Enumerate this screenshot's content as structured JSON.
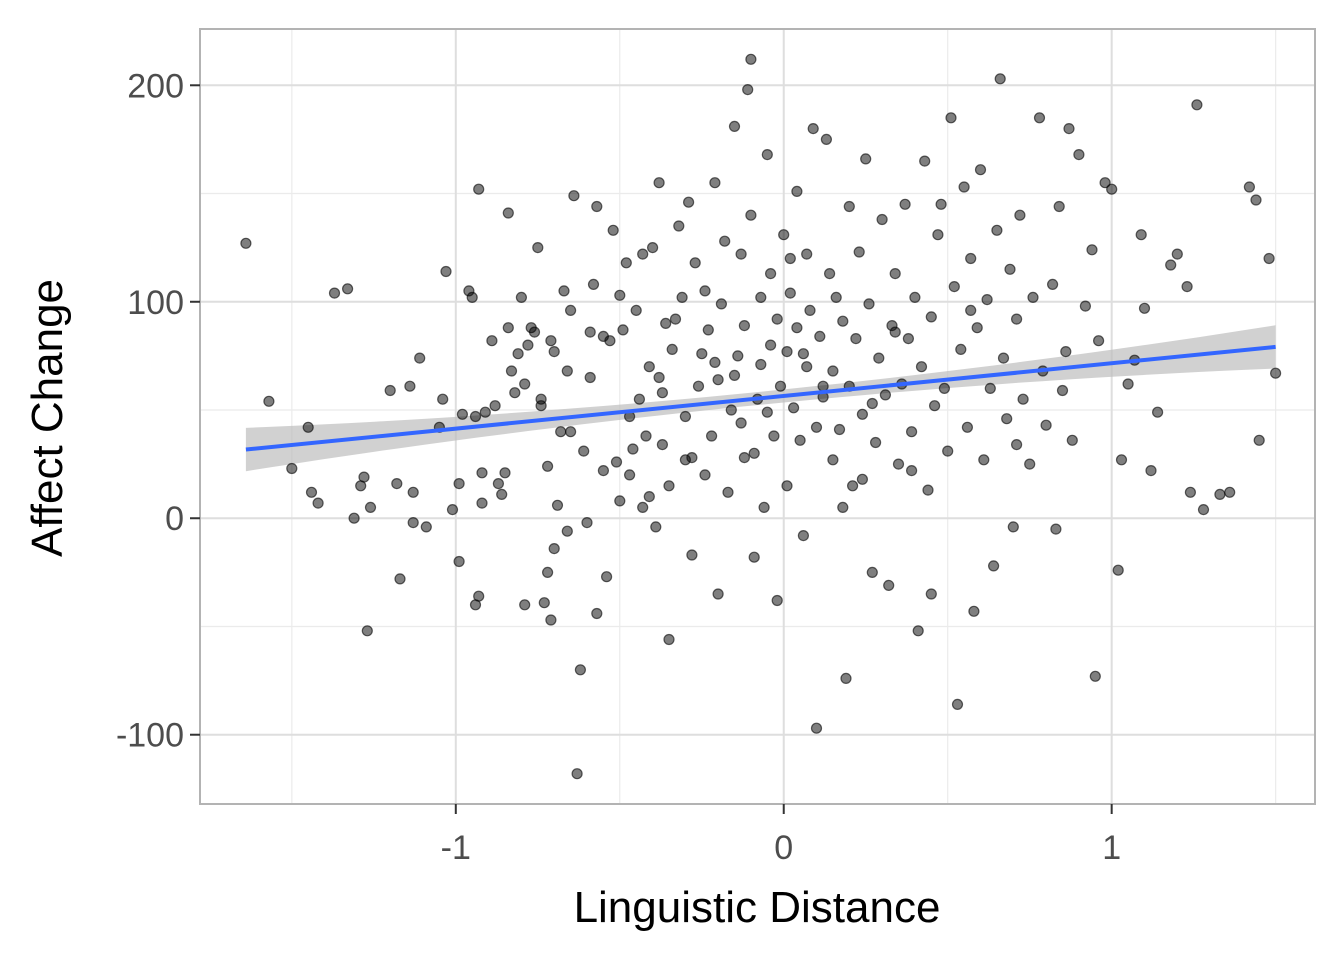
{
  "chart_data": {
    "type": "scatter",
    "title": "",
    "xlabel": "Linguistic Distance",
    "ylabel": "Affect Change",
    "xlim": [
      -1.78,
      1.62
    ],
    "ylim": [
      -132,
      226
    ],
    "x_ticks": [
      -1,
      0,
      1
    ],
    "x_tick_labels": [
      "-1",
      "0",
      "1"
    ],
    "y_ticks": [
      -100,
      0,
      100,
      200
    ],
    "y_tick_labels": [
      "-100",
      "0",
      "100",
      "200"
    ],
    "grid": true,
    "legend": "none",
    "point_color": "#000000",
    "point_opacity": 0.5,
    "regression": {
      "method": "linear",
      "line_color": "#3366ff",
      "band_color": "#bebebe",
      "x_range": [
        -1.64,
        1.5
      ],
      "slope": 15.1,
      "intercept": 56.5,
      "se_at_ends": 10,
      "se_at_center": 3
    },
    "points": [
      [
        -1.64,
        127
      ],
      [
        -1.57,
        54
      ],
      [
        -1.5,
        23
      ],
      [
        -1.45,
        42
      ],
      [
        -1.44,
        12
      ],
      [
        -1.42,
        7
      ],
      [
        -1.37,
        104
      ],
      [
        -1.33,
        106
      ],
      [
        -1.31,
        0
      ],
      [
        -1.29,
        15
      ],
      [
        -1.28,
        19
      ],
      [
        -1.27,
        -52
      ],
      [
        -1.26,
        5
      ],
      [
        -1.2,
        59
      ],
      [
        -1.18,
        16
      ],
      [
        -1.17,
        -28
      ],
      [
        -1.14,
        61
      ],
      [
        -1.13,
        12
      ],
      [
        -1.13,
        -2
      ],
      [
        -1.11,
        74
      ],
      [
        -1.09,
        -4
      ],
      [
        -1.05,
        42
      ],
      [
        -1.04,
        55
      ],
      [
        -1.03,
        114
      ],
      [
        -1.01,
        4
      ],
      [
        -0.99,
        16
      ],
      [
        -0.99,
        -20
      ],
      [
        -0.98,
        48
      ],
      [
        -0.96,
        105
      ],
      [
        -0.95,
        102
      ],
      [
        -0.94,
        -40
      ],
      [
        -0.94,
        47
      ],
      [
        -0.93,
        -36
      ],
      [
        -0.93,
        152
      ],
      [
        -0.92,
        7
      ],
      [
        -0.92,
        21
      ],
      [
        -0.91,
        49
      ],
      [
        -0.89,
        82
      ],
      [
        -0.88,
        52
      ],
      [
        -0.87,
        16
      ],
      [
        -0.86,
        11
      ],
      [
        -0.85,
        21
      ],
      [
        -0.84,
        141
      ],
      [
        -0.84,
        88
      ],
      [
        -0.83,
        68
      ],
      [
        -0.82,
        58
      ],
      [
        -0.81,
        76
      ],
      [
        -0.8,
        102
      ],
      [
        -0.79,
        62
      ],
      [
        -0.78,
        80
      ],
      [
        -0.77,
        88
      ],
      [
        -0.76,
        86
      ],
      [
        -0.75,
        125
      ],
      [
        -0.74,
        52
      ],
      [
        -0.74,
        55
      ],
      [
        -0.73,
        -39
      ],
      [
        -0.72,
        24
      ],
      [
        -0.72,
        -25
      ],
      [
        -0.71,
        -47
      ],
      [
        -0.71,
        82
      ],
      [
        -0.7,
        77
      ],
      [
        -0.69,
        6
      ],
      [
        -0.68,
        40
      ],
      [
        -0.67,
        105
      ],
      [
        -0.66,
        68
      ],
      [
        -0.66,
        -6
      ],
      [
        -0.65,
        40
      ],
      [
        -0.65,
        96
      ],
      [
        -0.64,
        149
      ],
      [
        -0.63,
        -118
      ],
      [
        -0.62,
        -70
      ],
      [
        -0.61,
        31
      ],
      [
        -0.6,
        -2
      ],
      [
        -0.59,
        65
      ],
      [
        -0.59,
        86
      ],
      [
        -0.58,
        108
      ],
      [
        -0.57,
        144
      ],
      [
        -0.57,
        -44
      ],
      [
        -0.55,
        22
      ],
      [
        -0.54,
        -27
      ],
      [
        -0.53,
        82
      ],
      [
        -0.52,
        133
      ],
      [
        -0.51,
        26
      ],
      [
        -0.5,
        103
      ],
      [
        -0.5,
        8
      ],
      [
        -0.49,
        87
      ],
      [
        -0.48,
        118
      ],
      [
        -0.47,
        47
      ],
      [
        -0.46,
        32
      ],
      [
        -0.45,
        96
      ],
      [
        -0.44,
        55
      ],
      [
        -0.43,
        122
      ],
      [
        -0.43,
        5
      ],
      [
        -0.42,
        38
      ],
      [
        -0.41,
        70
      ],
      [
        -0.4,
        125
      ],
      [
        -0.39,
        -4
      ],
      [
        -0.38,
        155
      ],
      [
        -0.38,
        65
      ],
      [
        -0.37,
        34
      ],
      [
        -0.36,
        90
      ],
      [
        -0.35,
        15
      ],
      [
        -0.35,
        -56
      ],
      [
        -0.34,
        78
      ],
      [
        -0.33,
        92
      ],
      [
        -0.32,
        135
      ],
      [
        -0.31,
        102
      ],
      [
        -0.3,
        47
      ],
      [
        -0.3,
        27
      ],
      [
        -0.29,
        146
      ],
      [
        -0.28,
        -17
      ],
      [
        -0.27,
        118
      ],
      [
        -0.26,
        61
      ],
      [
        -0.25,
        76
      ],
      [
        -0.24,
        20
      ],
      [
        -0.24,
        105
      ],
      [
        -0.23,
        87
      ],
      [
        -0.22,
        38
      ],
      [
        -0.21,
        155
      ],
      [
        -0.2,
        -35
      ],
      [
        -0.2,
        64
      ],
      [
        -0.19,
        99
      ],
      [
        -0.18,
        128
      ],
      [
        -0.17,
        12
      ],
      [
        -0.16,
        50
      ],
      [
        -0.15,
        181
      ],
      [
        -0.15,
        66
      ],
      [
        -0.14,
        75
      ],
      [
        -0.13,
        122
      ],
      [
        -0.12,
        89
      ],
      [
        -0.12,
        28
      ],
      [
        -0.11,
        198
      ],
      [
        -0.1,
        212
      ],
      [
        -0.1,
        140
      ],
      [
        -0.09,
        -18
      ],
      [
        -0.08,
        55
      ],
      [
        -0.07,
        102
      ],
      [
        -0.07,
        71
      ],
      [
        -0.06,
        5
      ],
      [
        -0.05,
        168
      ],
      [
        -0.04,
        113
      ],
      [
        -0.04,
        80
      ],
      [
        -0.03,
        38
      ],
      [
        -0.02,
        92
      ],
      [
        -0.02,
        -38
      ],
      [
        -0.01,
        61
      ],
      [
        0.0,
        131
      ],
      [
        0.01,
        77
      ],
      [
        0.01,
        15
      ],
      [
        0.02,
        104
      ],
      [
        0.03,
        51
      ],
      [
        0.04,
        88
      ],
      [
        0.04,
        151
      ],
      [
        0.05,
        36
      ],
      [
        0.06,
        -8
      ],
      [
        0.07,
        122
      ],
      [
        0.07,
        70
      ],
      [
        0.08,
        96
      ],
      [
        0.09,
        180
      ],
      [
        0.1,
        -97
      ],
      [
        0.1,
        42
      ],
      [
        0.11,
        84
      ],
      [
        0.12,
        56
      ],
      [
        0.13,
        175
      ],
      [
        0.14,
        113
      ],
      [
        0.15,
        27
      ],
      [
        0.15,
        68
      ],
      [
        0.16,
        102
      ],
      [
        0.17,
        41
      ],
      [
        0.18,
        91
      ],
      [
        0.19,
        -74
      ],
      [
        0.2,
        144
      ],
      [
        0.2,
        61
      ],
      [
        0.21,
        15
      ],
      [
        0.22,
        83
      ],
      [
        0.23,
        123
      ],
      [
        0.24,
        48
      ],
      [
        0.25,
        166
      ],
      [
        0.26,
        99
      ],
      [
        0.27,
        -25
      ],
      [
        0.28,
        35
      ],
      [
        0.29,
        74
      ],
      [
        0.3,
        138
      ],
      [
        0.31,
        57
      ],
      [
        0.32,
        -31
      ],
      [
        0.33,
        89
      ],
      [
        0.34,
        113
      ],
      [
        0.35,
        25
      ],
      [
        0.36,
        62
      ],
      [
        0.37,
        145
      ],
      [
        0.38,
        83
      ],
      [
        0.39,
        40
      ],
      [
        0.4,
        102
      ],
      [
        0.41,
        -52
      ],
      [
        0.42,
        70
      ],
      [
        0.43,
        165
      ],
      [
        0.44,
        13
      ],
      [
        0.45,
        93
      ],
      [
        0.46,
        52
      ],
      [
        0.47,
        131
      ],
      [
        0.48,
        145
      ],
      [
        0.49,
        60
      ],
      [
        0.5,
        31
      ],
      [
        0.51,
        185
      ],
      [
        0.52,
        107
      ],
      [
        0.53,
        -86
      ],
      [
        0.54,
        78
      ],
      [
        0.55,
        153
      ],
      [
        0.56,
        42
      ],
      [
        0.57,
        120
      ],
      [
        0.58,
        -43
      ],
      [
        0.59,
        88
      ],
      [
        0.6,
        161
      ],
      [
        0.61,
        27
      ],
      [
        0.62,
        101
      ],
      [
        0.63,
        60
      ],
      [
        0.64,
        -22
      ],
      [
        0.65,
        133
      ],
      [
        0.66,
        203
      ],
      [
        0.67,
        74
      ],
      [
        0.68,
        46
      ],
      [
        0.69,
        115
      ],
      [
        0.7,
        -4
      ],
      [
        0.71,
        92
      ],
      [
        0.72,
        140
      ],
      [
        0.73,
        55
      ],
      [
        0.75,
        25
      ],
      [
        0.76,
        102
      ],
      [
        0.78,
        185
      ],
      [
        0.79,
        68
      ],
      [
        0.8,
        43
      ],
      [
        0.82,
        108
      ],
      [
        0.83,
        -5
      ],
      [
        0.84,
        144
      ],
      [
        0.86,
        77
      ],
      [
        0.87,
        180
      ],
      [
        0.88,
        36
      ],
      [
        0.9,
        168
      ],
      [
        0.92,
        98
      ],
      [
        0.94,
        124
      ],
      [
        0.95,
        -73
      ],
      [
        0.96,
        82
      ],
      [
        0.98,
        155
      ],
      [
        1.0,
        152
      ],
      [
        1.02,
        -24
      ],
      [
        1.03,
        27
      ],
      [
        1.05,
        62
      ],
      [
        1.07,
        73
      ],
      [
        1.09,
        131
      ],
      [
        1.1,
        97
      ],
      [
        1.12,
        22
      ],
      [
        1.14,
        49
      ],
      [
        1.18,
        117
      ],
      [
        1.2,
        122
      ],
      [
        1.23,
        107
      ],
      [
        1.24,
        12
      ],
      [
        1.26,
        191
      ],
      [
        1.28,
        4
      ],
      [
        1.33,
        11
      ],
      [
        1.36,
        12
      ],
      [
        1.42,
        153
      ],
      [
        1.44,
        147
      ],
      [
        1.45,
        36
      ],
      [
        1.48,
        120
      ],
      [
        1.5,
        67
      ],
      [
        -0.79,
        -40
      ],
      [
        -0.7,
        -14
      ],
      [
        -0.55,
        84
      ],
      [
        -0.41,
        10
      ],
      [
        -0.28,
        28
      ],
      [
        -0.05,
        49
      ],
      [
        0.02,
        120
      ],
      [
        0.18,
        5
      ],
      [
        0.34,
        86
      ],
      [
        0.45,
        -35
      ],
      [
        0.57,
        96
      ],
      [
        0.71,
        34
      ],
      [
        0.85,
        59
      ],
      [
        -0.47,
        20
      ],
      [
        -0.37,
        58
      ],
      [
        -0.09,
        30
      ],
      [
        0.12,
        61
      ],
      [
        0.27,
        53
      ],
      [
        0.39,
        22
      ],
      [
        -0.21,
        72
      ],
      [
        -0.13,
        44
      ],
      [
        0.06,
        76
      ],
      [
        0.24,
        18
      ]
    ]
  }
}
